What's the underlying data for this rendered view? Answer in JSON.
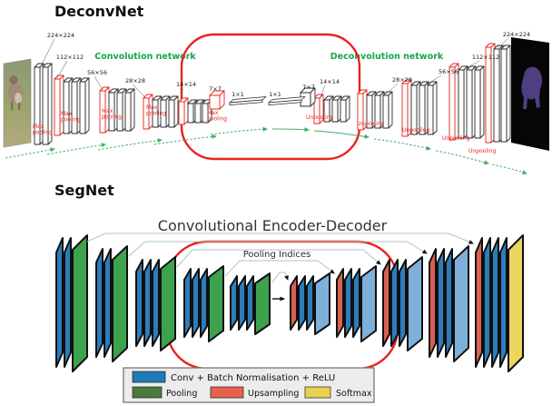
{
  "deconvnet": {
    "title": "DeconvNet",
    "conv_network_label": "Convolution network",
    "deconv_network_label": "Deconvolution network",
    "max_pooling_lines": [
      "Max",
      "pooling"
    ],
    "unpooling_label": "Unpooling",
    "size_labels": [
      "224×224",
      "112×112",
      "56×56",
      "28×28",
      "14×14",
      "7×7",
      "1×1",
      "1×1",
      "7×7",
      "14×14",
      "28×28",
      "56×56",
      "112×112",
      "224×224"
    ]
  },
  "segnet": {
    "title": "SegNet",
    "heading": "Convolutional Encoder-Decoder",
    "pooling_indices_label": "Pooling Indices",
    "legend": {
      "conv": "Conv + Batch Normalisation + ReLU",
      "pooling": "Pooling",
      "upsampling": "Upsampling",
      "softmax": "Softmax"
    }
  },
  "colors": {
    "annotation_red": "#e8231d",
    "network_label_green": "#17a54b",
    "arrow_green": "#3fae63",
    "conv_blue": "#2d7dbb",
    "decoder_feature_blue": "#7fb0d9",
    "pool_green": "#3da24c",
    "upsample_red": "#d96052",
    "softmax_yellow": "#ecd65e",
    "legend_conv_blue": "#1f7ab8",
    "legend_pool_green": "#4a7a3e",
    "legend_upsample_red": "#e8614e",
    "legend_softmax_yellow": "#e8d24e",
    "pooling_indices_line": "#a6c8bc"
  }
}
